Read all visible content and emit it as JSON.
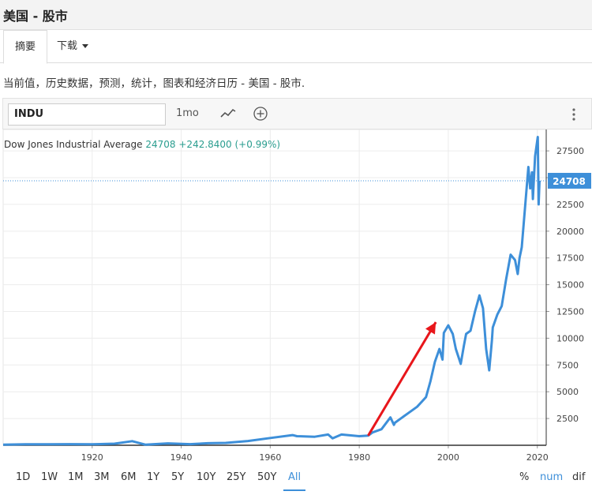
{
  "header": {
    "title": "美国 - 股市"
  },
  "tabs": [
    {
      "label": "摘要"
    },
    {
      "label": "下载"
    }
  ],
  "description": "当前值，历史数据，预测，统计，图表和经济日历 - 美国 - 股市.",
  "toolbar": {
    "symbol": "INDU",
    "interval": "1mo"
  },
  "legend": {
    "name": "Dow Jones Industrial Average",
    "last": "24708",
    "change": "+242.8400 (+0.99%)"
  },
  "price_label": "24708",
  "ranges": [
    "1D",
    "1W",
    "1M",
    "3M",
    "6M",
    "1Y",
    "5Y",
    "10Y",
    "25Y",
    "50Y",
    "All"
  ],
  "active_range": "All",
  "modes": [
    "%",
    "num",
    "dif"
  ],
  "active_mode": "num",
  "colors": {
    "line": "#3d8fd9",
    "arrow": "#e8161b",
    "label_bg": "#3d8fd9"
  },
  "chart_data": {
    "type": "line",
    "x_ticks": [
      "1920",
      "1940",
      "1960",
      "1980",
      "2000",
      "2020"
    ],
    "y_ticks": [
      "2500",
      "5000",
      "7500",
      "10000",
      "12500",
      "15000",
      "17500",
      "20000",
      "22500",
      "25000",
      "27500"
    ],
    "ylim": [
      0,
      29500
    ],
    "xlim": [
      1900,
      2022
    ],
    "last_value": 24708,
    "series": [
      {
        "x": [
          1900,
          1905,
          1910,
          1915,
          1920,
          1925,
          1929,
          1932,
          1937,
          1942,
          1946,
          1950,
          1955,
          1960,
          1965,
          1966,
          1970,
          1973,
          1974,
          1976,
          1980,
          1982,
          1983,
          1985,
          1987,
          1987.8,
          1988,
          1990,
          1991,
          1993,
          1995,
          1996,
          1997,
          1998,
          1998.7,
          1999,
          2000,
          2001,
          2001.7,
          2002.8,
          2003.5,
          2004,
          2005,
          2006,
          2007,
          2007.8,
          2008.5,
          2009.2,
          2009.8,
          2010,
          2011,
          2012,
          2013,
          2014,
          2015,
          2015.6,
          2016,
          2016.5,
          2017,
          2018,
          2018.4,
          2018.8,
          2019,
          2019.5,
          2020.1,
          2020.3,
          2020.5
        ],
        "values": [
          60,
          90,
          90,
          100,
          90,
          150,
          380,
          50,
          180,
          100,
          190,
          220,
          400,
          680,
          950,
          850,
          800,
          1000,
          650,
          1000,
          850,
          900,
          1200,
          1500,
          2600,
          1900,
          2100,
          2700,
          3000,
          3600,
          4500,
          6000,
          7800,
          9000,
          8000,
          10500,
          11200,
          10400,
          9000,
          7600,
          9300,
          10400,
          10700,
          12500,
          14000,
          12800,
          9000,
          7000,
          9800,
          11000,
          12200,
          13000,
          15500,
          17800,
          17300,
          16000,
          17500,
          18500,
          21000,
          26000,
          24000,
          25500,
          23000,
          27000,
          28800,
          22500,
          24708
        ]
      }
    ]
  }
}
